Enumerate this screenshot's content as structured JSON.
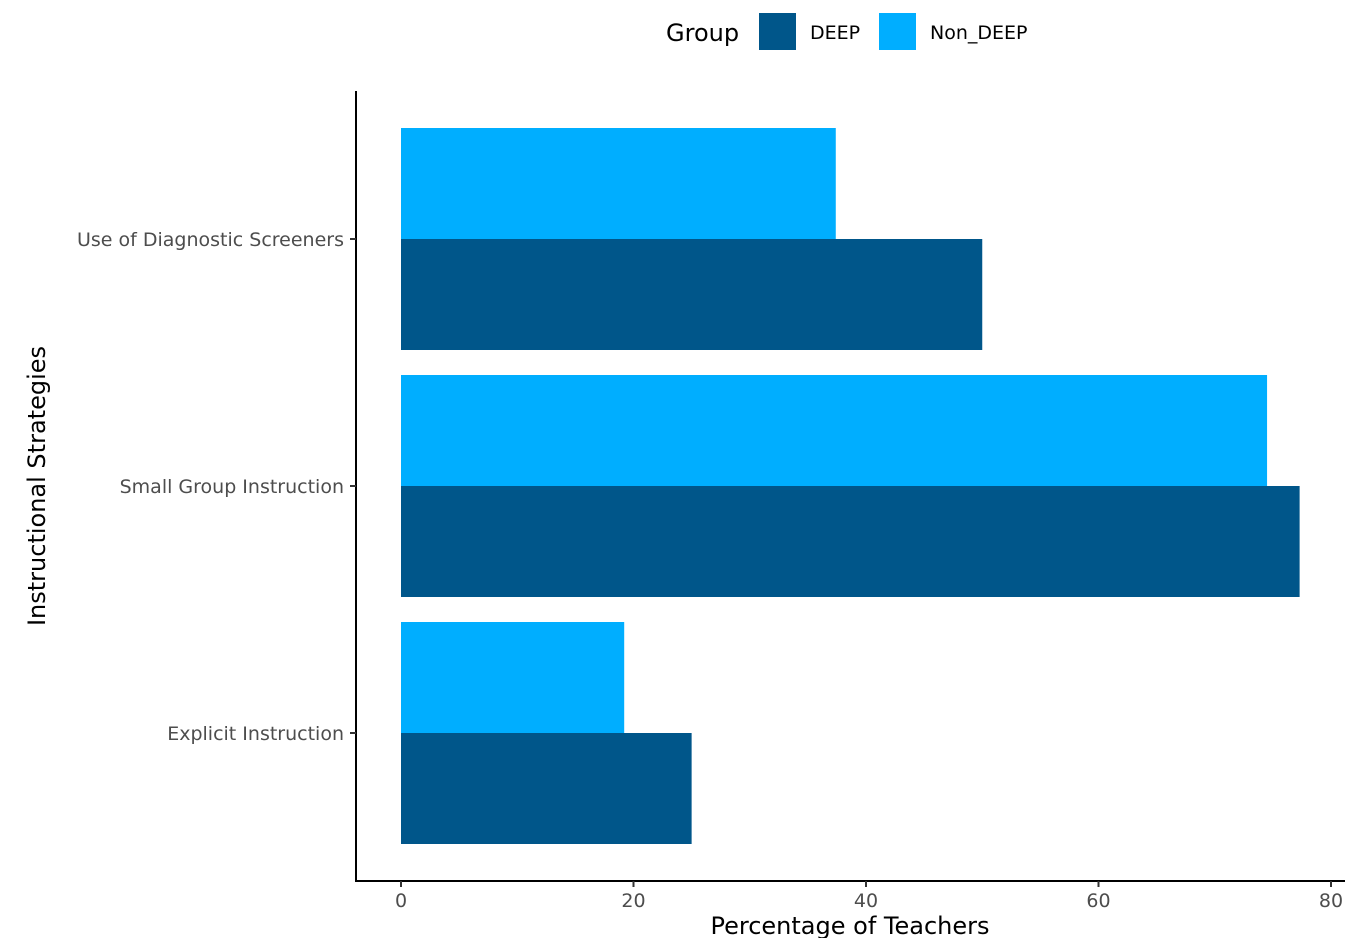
{
  "chart_data": {
    "type": "bar",
    "orientation": "horizontal",
    "categories": [
      "Use of Diagnostic Screeners",
      "Small Group Instruction",
      "Explicit Instruction"
    ],
    "series": [
      {
        "name": "DEEP",
        "color": "#00568A",
        "values": [
          50.0,
          77.3,
          25.0
        ]
      },
      {
        "name": "Non_DEEP",
        "color": "#00AEFF",
        "values": [
          37.4,
          74.5,
          19.2
        ]
      }
    ],
    "xlabel": "Percentage of Teachers",
    "ylabel": "Instructional Strategies",
    "xlim": [
      0,
      80
    ],
    "xticks": [
      "0",
      "20",
      "40",
      "60",
      "80"
    ],
    "legend": {
      "title": "Group",
      "placement": "top"
    },
    "grid": false
  }
}
